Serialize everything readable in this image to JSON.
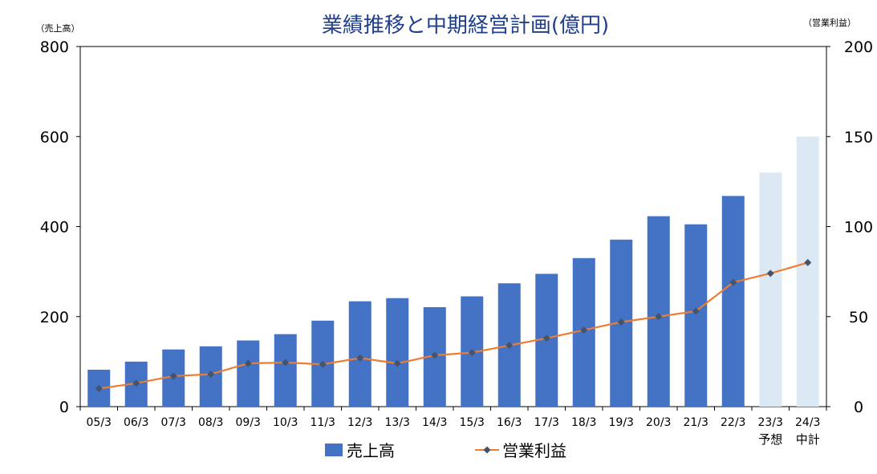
{
  "chart_data": {
    "type": "bar",
    "title": "業績推移と中期経営計画(億円)",
    "left_axis_label": "（売上高）",
    "right_axis_label": "（営業利益）",
    "categories": [
      "05/3",
      "06/3",
      "07/3",
      "08/3",
      "09/3",
      "10/3",
      "11/3",
      "12/3",
      "13/3",
      "14/3",
      "15/3",
      "16/3",
      "17/3",
      "18/3",
      "19/3",
      "20/3",
      "21/3",
      "22/3",
      "23/3",
      "24/3"
    ],
    "category_sublabels": [
      "",
      "",
      "",
      "",
      "",
      "",
      "",
      "",
      "",
      "",
      "",
      "",
      "",
      "",
      "",
      "",
      "",
      "",
      "予想",
      "中計"
    ],
    "left_ylim": [
      0,
      800
    ],
    "left_ticks": [
      0,
      200,
      400,
      600,
      800
    ],
    "right_ylim": [
      0,
      200
    ],
    "right_ticks": [
      0,
      50,
      100,
      150,
      200
    ],
    "grid": false,
    "legend_position": "bottom",
    "series": [
      {
        "name": "売上高",
        "type": "bar",
        "axis": "left",
        "color": "#4472C4",
        "forecast_color": "#DDE8F5",
        "values": [
          82,
          100,
          127,
          134,
          147,
          161,
          191,
          234,
          241,
          221,
          245,
          274,
          295,
          330,
          371,
          423,
          405,
          468,
          520,
          600
        ]
      },
      {
        "name": "営業利益",
        "type": "line",
        "axis": "right",
        "color": "#ED7D31",
        "marker_color": "#44546A",
        "values": [
          10,
          13,
          17,
          18,
          24,
          24.5,
          23.5,
          27,
          24,
          28.5,
          30,
          34,
          38,
          42.5,
          47,
          50,
          53,
          69,
          74,
          80
        ]
      }
    ],
    "forecast_start_index": 18
  }
}
